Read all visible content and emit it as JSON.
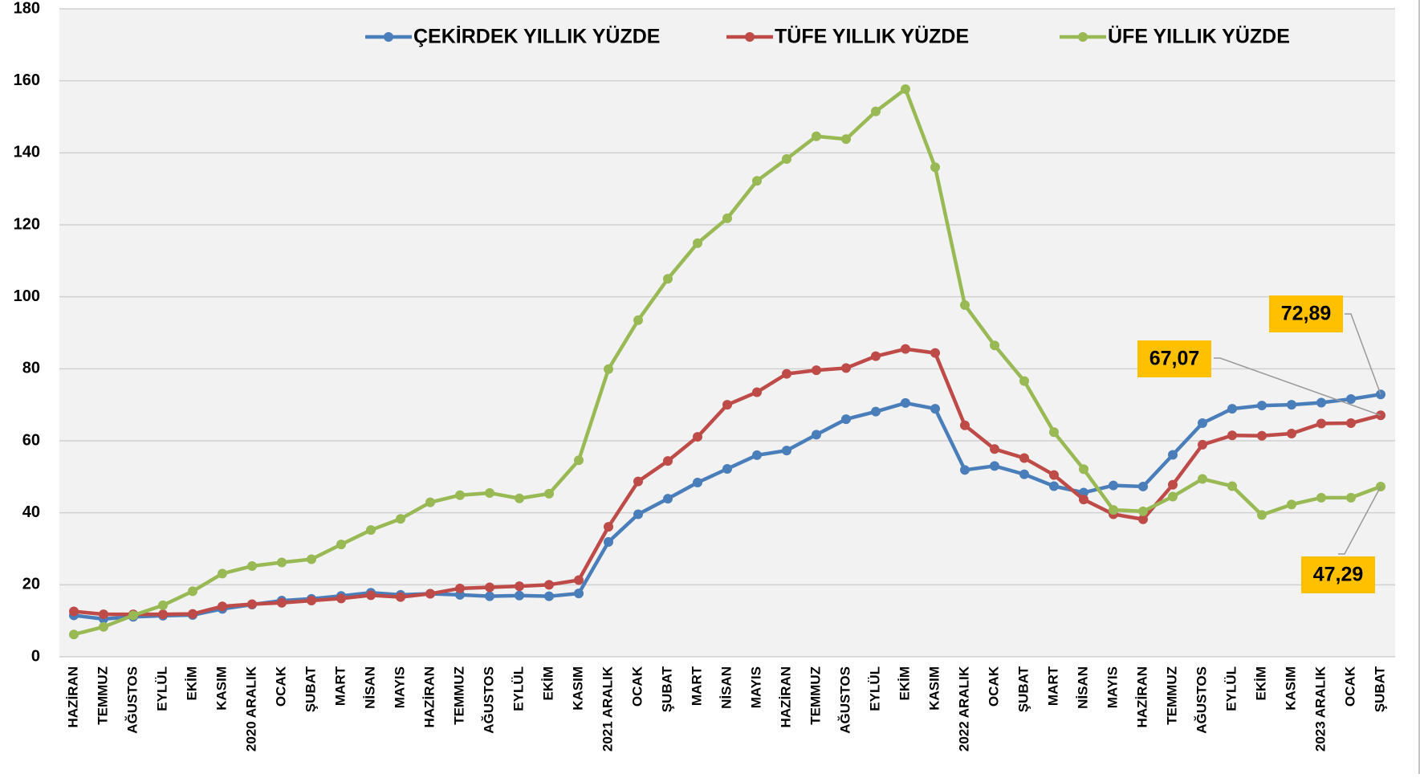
{
  "chart_data": {
    "type": "line",
    "categories": [
      "HAZİRAN",
      "TEMMUZ",
      "AĞUSTOS",
      "EYLÜL",
      "EKİM",
      "KASIM",
      "2020 ARALIK",
      "OCAK",
      "ŞUBAT",
      "MART",
      "NİSAN",
      "MAYIS",
      "HAZİRAN",
      "TEMMUZ",
      "AĞUSTOS",
      "EYLÜL",
      "EKİM",
      "KASIM",
      "2021 ARALIK",
      "OCAK",
      "ŞUBAT",
      "MART",
      "NİSAN",
      "MAYIS",
      "HAZİRAN",
      "TEMMUZ",
      "AĞUSTOS",
      "EYLÜL",
      "EKİM",
      "KASIM",
      "2022 ARALIK",
      "OCAK",
      "ŞUBAT",
      "MART",
      "NİSAN",
      "MAYIS",
      "HAZİRAN",
      "TEMMUZ",
      "AĞUSTOS",
      "EYLÜL",
      "EKİM",
      "KASIM",
      "2023 ARALIK",
      "OCAK",
      "ŞUBAT"
    ],
    "series": [
      {
        "name": "ÇEKİRDEK YILLIK YÜZDE",
        "color": "#4a7ebb",
        "values": [
          11.5,
          10.5,
          11.1,
          11.4,
          11.6,
          13.3,
          14.5,
          15.6,
          16.1,
          16.9,
          17.8,
          17.2,
          17.5,
          17.2,
          16.8,
          17.0,
          16.8,
          17.6,
          31.9,
          39.6,
          43.9,
          48.4,
          52.2,
          56.0,
          57.3,
          61.7,
          66.0,
          68.1,
          70.5,
          68.9,
          51.9,
          53.0,
          50.7,
          47.4,
          45.6,
          47.6,
          47.3,
          56.1,
          64.9,
          68.9,
          69.8,
          70.0,
          70.6,
          71.6,
          72.89
        ],
        "value_labels": [
          null,
          null,
          null,
          null,
          null,
          null,
          null,
          null,
          null,
          null,
          null,
          null,
          null,
          null,
          null,
          null,
          null,
          null,
          null,
          null,
          null,
          null,
          null,
          null,
          null,
          null,
          null,
          null,
          null,
          null,
          null,
          null,
          null,
          null,
          null,
          null,
          null,
          null,
          null,
          null,
          null,
          null,
          null,
          null,
          "72,89"
        ]
      },
      {
        "name": "TÜFE YILLIK YÜZDE",
        "color": "#be4b48",
        "values": [
          12.6,
          11.8,
          11.8,
          11.8,
          11.9,
          14.0,
          14.6,
          15.0,
          15.6,
          16.2,
          17.1,
          16.6,
          17.5,
          19.0,
          19.3,
          19.6,
          20.0,
          21.3,
          36.1,
          48.7,
          54.4,
          61.1,
          70.0,
          73.5,
          78.6,
          79.6,
          80.2,
          83.5,
          85.5,
          84.4,
          64.3,
          57.7,
          55.2,
          50.5,
          43.7,
          39.6,
          38.2,
          47.8,
          58.9,
          61.5,
          61.4,
          62.0,
          64.8,
          64.9,
          67.07
        ],
        "value_labels": [
          null,
          null,
          null,
          null,
          null,
          null,
          null,
          null,
          null,
          null,
          null,
          null,
          null,
          null,
          null,
          null,
          null,
          null,
          null,
          null,
          null,
          null,
          null,
          null,
          null,
          null,
          null,
          null,
          null,
          null,
          null,
          null,
          null,
          null,
          null,
          null,
          null,
          null,
          null,
          null,
          null,
          null,
          null,
          null,
          "67,07"
        ]
      },
      {
        "name": "ÜFE YILLIK YÜZDE",
        "color": "#98b954",
        "values": [
          6.2,
          8.3,
          11.5,
          14.3,
          18.2,
          23.1,
          25.2,
          26.2,
          27.1,
          31.2,
          35.2,
          38.3,
          42.9,
          44.9,
          45.5,
          44.0,
          45.3,
          54.6,
          79.9,
          93.5,
          105.0,
          114.9,
          121.8,
          132.2,
          138.3,
          144.6,
          143.8,
          151.5,
          157.7,
          136.0,
          97.7,
          86.5,
          76.6,
          62.4,
          52.1,
          40.8,
          40.4,
          44.5,
          49.4,
          47.4,
          39.4,
          42.3,
          44.2,
          44.2,
          47.29
        ],
        "value_labels": [
          null,
          null,
          null,
          null,
          null,
          null,
          null,
          null,
          null,
          null,
          null,
          null,
          null,
          null,
          null,
          null,
          null,
          null,
          null,
          null,
          null,
          null,
          null,
          null,
          null,
          null,
          null,
          null,
          null,
          null,
          null,
          null,
          null,
          null,
          null,
          null,
          null,
          null,
          null,
          null,
          null,
          null,
          null,
          null,
          "47,29"
        ]
      }
    ],
    "ylim": [
      0,
      180
    ],
    "yticks": [
      0,
      20,
      40,
      60,
      80,
      100,
      120,
      140,
      160,
      180
    ],
    "grid": true,
    "legend": "top"
  }
}
